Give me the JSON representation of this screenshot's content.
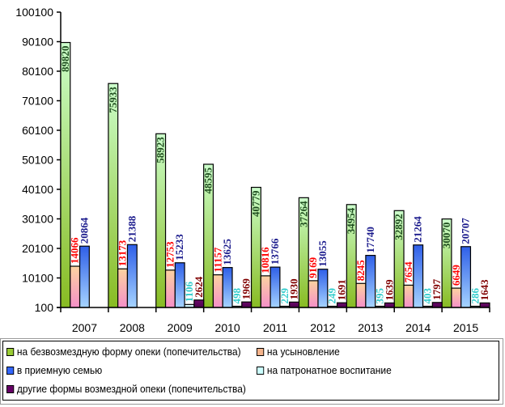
{
  "chart_data": {
    "type": "bar",
    "title": "",
    "xlabel": "",
    "ylabel": "",
    "categories": [
      "2007",
      "2008",
      "2009",
      "2010",
      "2011",
      "2012",
      "2013",
      "2014",
      "2015"
    ],
    "ylim": [
      100,
      100100
    ],
    "yticks": [
      100,
      10100,
      20100,
      30100,
      40100,
      50100,
      60100,
      70100,
      80100,
      90100,
      100100
    ],
    "grid": false,
    "legend_position": "bottom",
    "series": [
      {
        "name": "на безвозмездную форму опеки (попечительства)",
        "color": "#99cc33",
        "label_color": "#1f4d1f",
        "values": [
          89820,
          75933,
          58923,
          48595,
          40779,
          37264,
          34954,
          32892,
          30070
        ]
      },
      {
        "name": "на усыновление",
        "color": "#f5b48c",
        "label_color": "#ff0000",
        "values": [
          14066,
          13173,
          12753,
          11157,
          10816,
          9169,
          8245,
          7654,
          6649
        ]
      },
      {
        "name": "в приемную семью",
        "color": "#3366ff",
        "label_color": "#1a1a8c",
        "values": [
          20864,
          21388,
          15233,
          13625,
          13766,
          13055,
          17740,
          21264,
          20707
        ]
      },
      {
        "name": "на патронатное воспитание",
        "color": "#ccffff",
        "label_color": "#33cccc",
        "values": [
          null,
          null,
          1106,
          498,
          229,
          249,
          395,
          403,
          286
        ]
      },
      {
        "name": "другие формы возмездной опеки (попечительства)",
        "color": "#660066",
        "label_color": "#800000",
        "values": [
          null,
          null,
          2624,
          1969,
          1930,
          1691,
          1639,
          1797,
          1643
        ]
      }
    ]
  },
  "legend": {
    "items": [
      {
        "label": "на безвозмездную форму опеки (попечительства)",
        "color": "#99cc33"
      },
      {
        "label": "на усыновление",
        "color": "#f5b48c"
      },
      {
        "label": "в приемную семью",
        "color": "#3366ff"
      },
      {
        "label": "на патронатное воспитание",
        "color": "#ccffff"
      },
      {
        "label": "другие формы возмездной опеки (попечительства)",
        "color": "#660066"
      }
    ]
  }
}
